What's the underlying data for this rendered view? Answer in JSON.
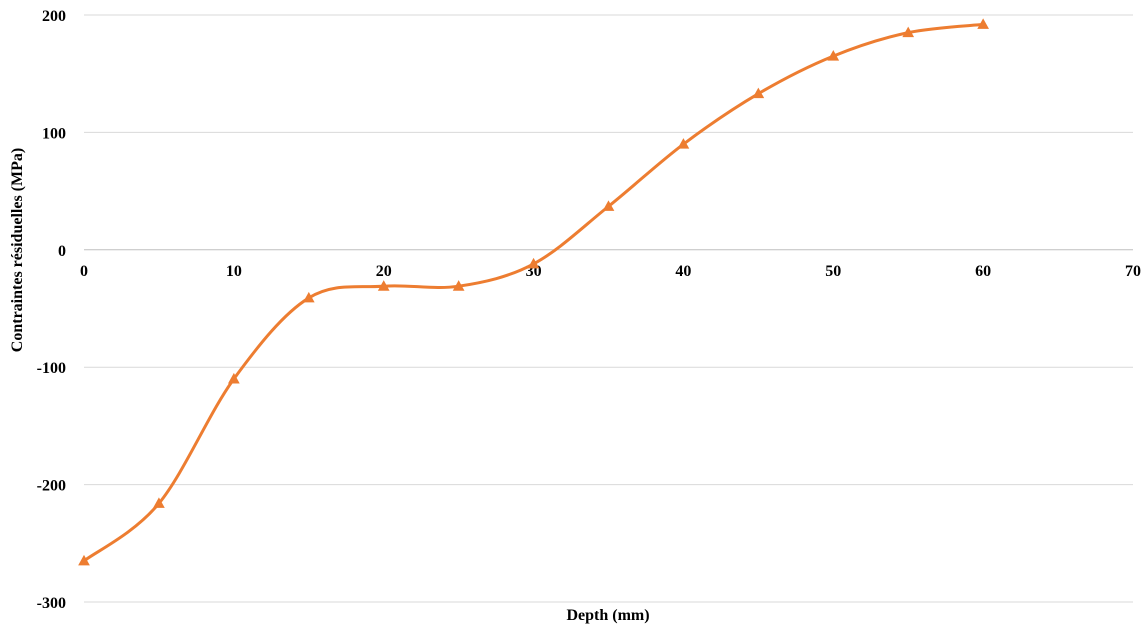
{
  "chart_data": {
    "type": "line",
    "title": "",
    "xlabel": "Depth (mm)",
    "ylabel": "Contraintes résiduelles (MPa)",
    "xlim": [
      0,
      70
    ],
    "ylim": [
      -300,
      200
    ],
    "xticks": [
      0,
      10,
      20,
      30,
      40,
      50,
      60,
      70
    ],
    "yticks": [
      200,
      100,
      0,
      -100,
      -200,
      -300
    ],
    "x_tick_labels": [
      "0",
      "10",
      "20",
      "30",
      "40",
      "50",
      "60",
      "70"
    ],
    "y_tick_labels": [
      "200",
      "100",
      "0",
      "-100",
      "-200",
      "-300"
    ],
    "grid": "horizontal",
    "smooth": true,
    "marker": "triangle",
    "series": [
      {
        "color": "#ED7D31",
        "x": [
          0,
          5,
          10,
          15,
          20,
          25,
          30,
          35,
          40,
          45,
          50,
          55,
          60
        ],
        "values": [
          -265,
          -216,
          -110,
          -41,
          -31,
          -31,
          -12,
          37,
          90,
          133,
          165,
          185,
          192
        ]
      }
    ]
  }
}
